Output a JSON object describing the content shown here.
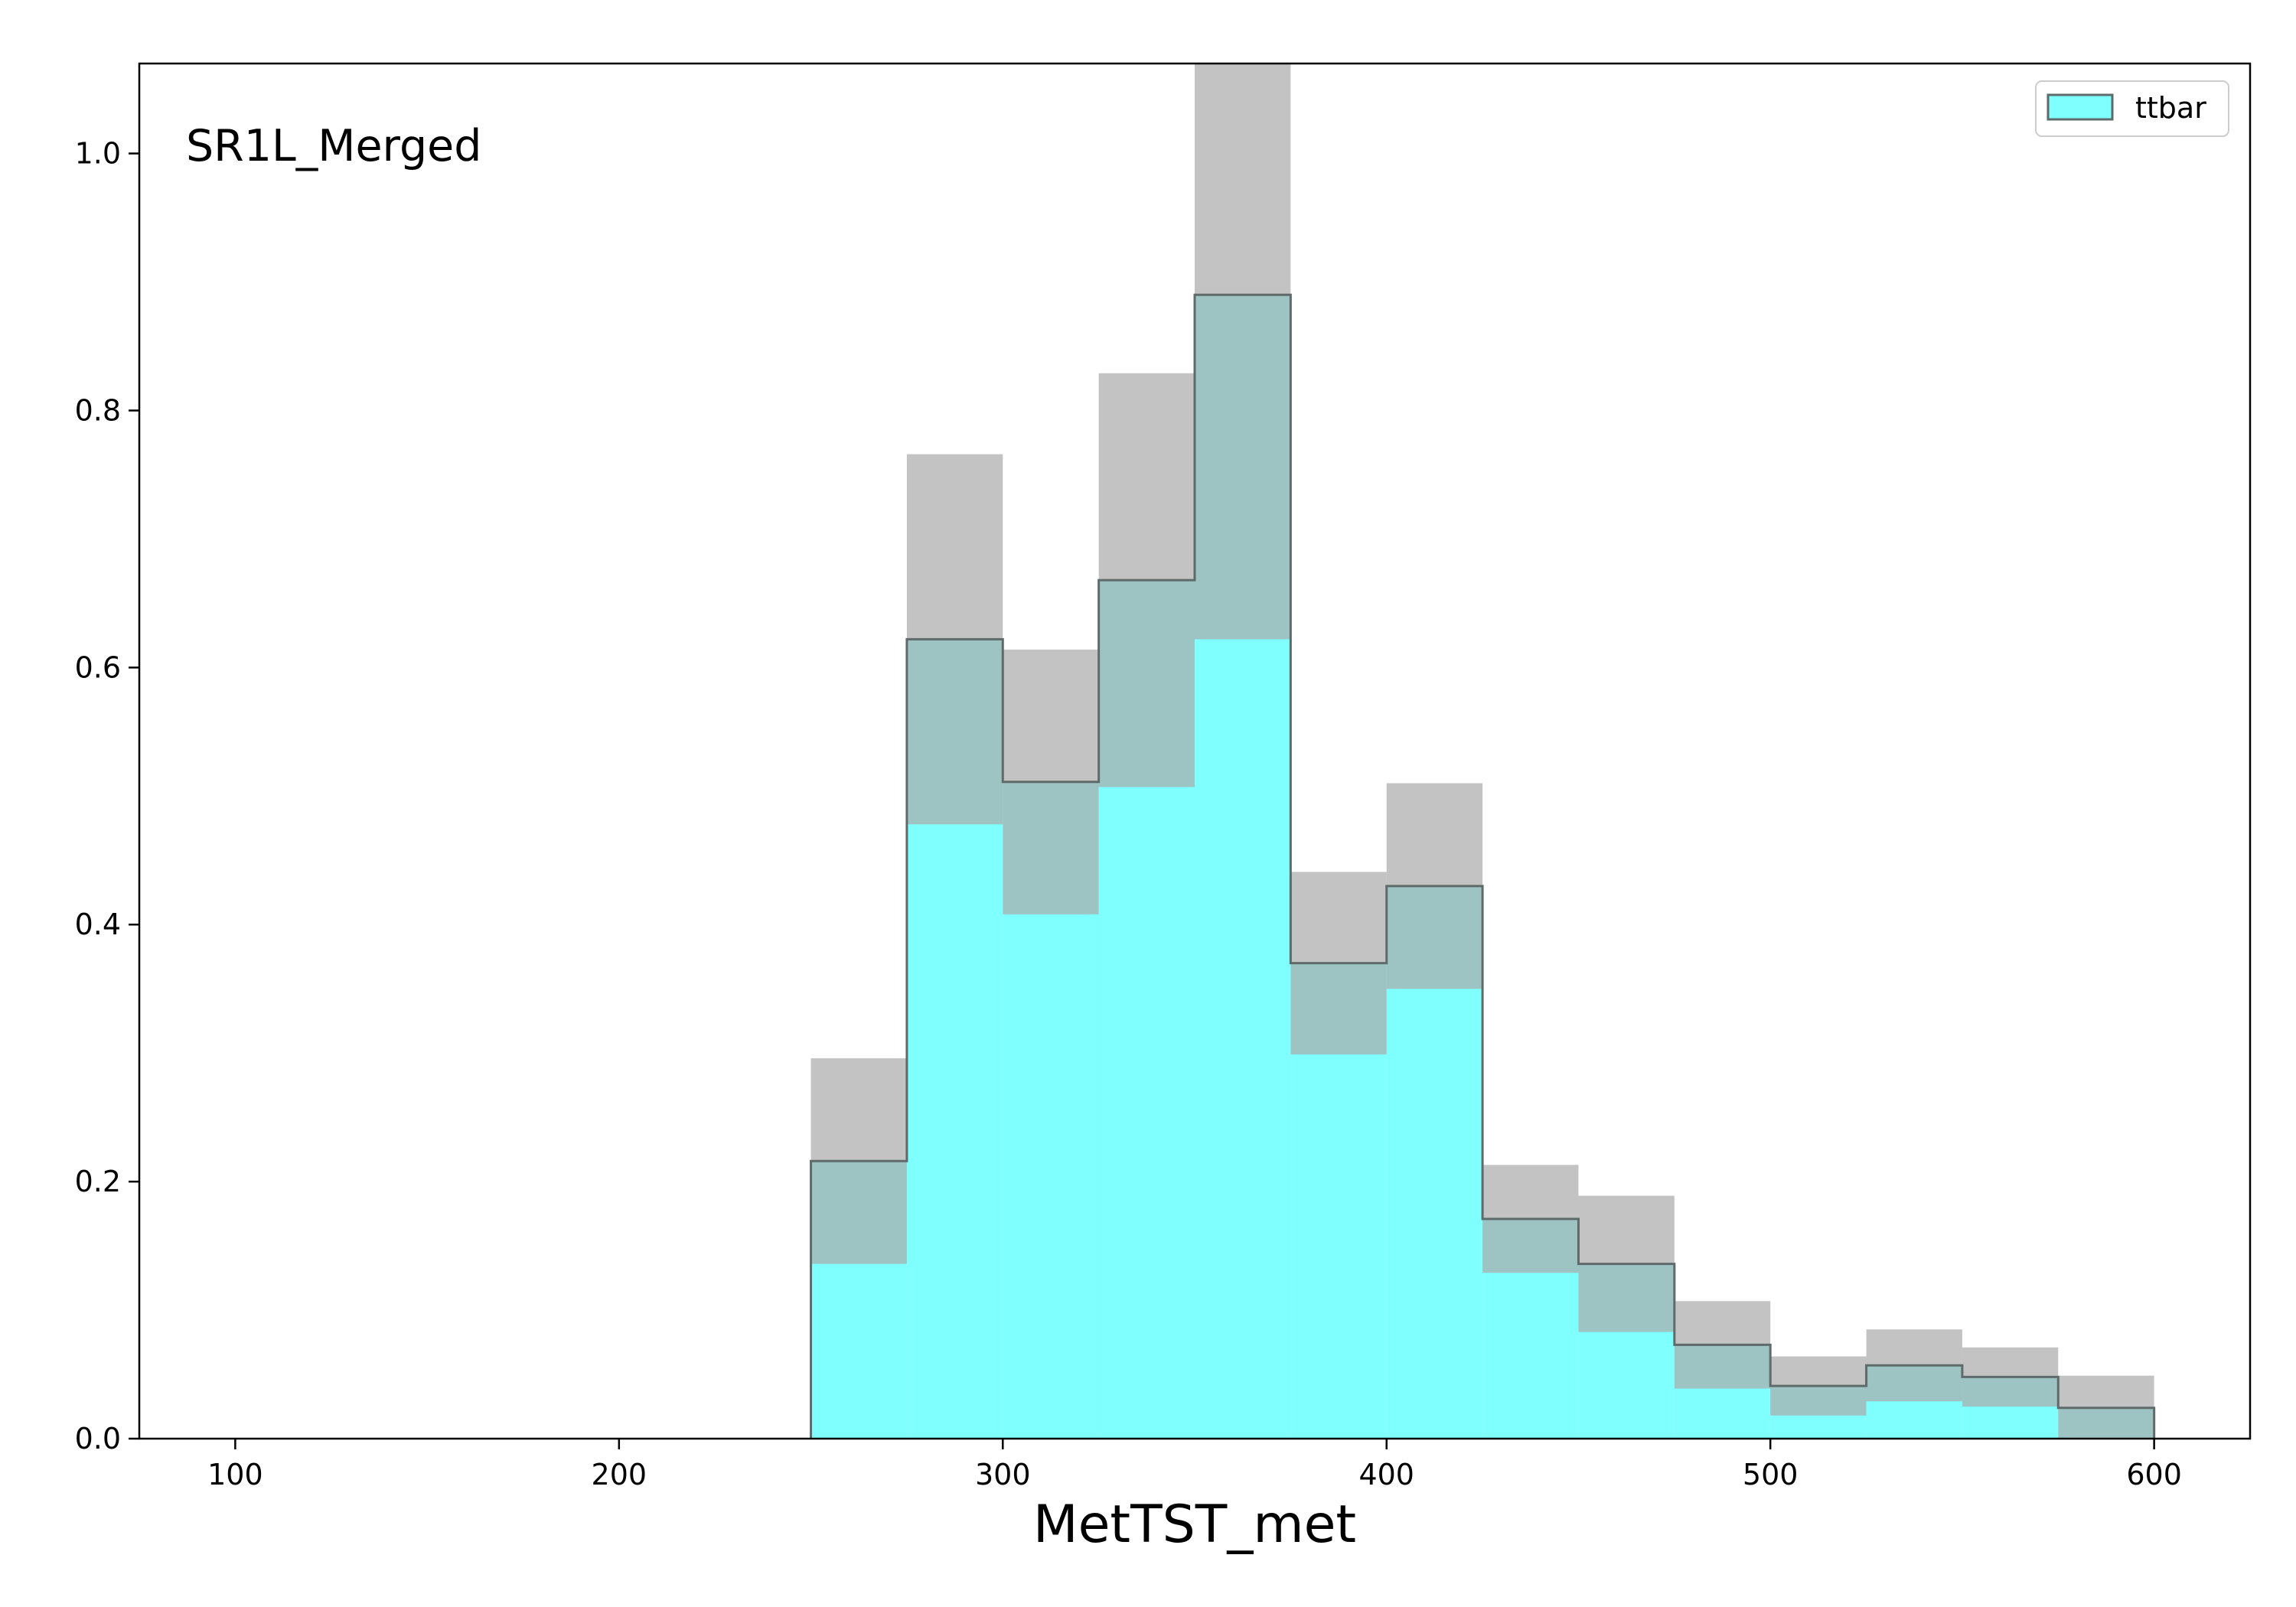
{
  "chart_data": {
    "type": "bar",
    "title": "",
    "annotation": "SR1L_Merged",
    "xlabel": "MetTST_met",
    "ylabel": "",
    "xlim": [
      75,
      625
    ],
    "ylim": [
      0,
      1.07
    ],
    "xticks": [
      100,
      200,
      300,
      400,
      500,
      600
    ],
    "yticks": [
      0.0,
      0.2,
      0.4,
      0.6,
      0.8,
      1.0
    ],
    "xtick_labels": [
      "100",
      "200",
      "300",
      "400",
      "500",
      "600"
    ],
    "ytick_labels": [
      "0.0",
      "0.2",
      "0.4",
      "0.6",
      "0.8",
      "1.0"
    ],
    "grid": false,
    "legend_position": "top-right",
    "bin_edges": [
      250,
      275,
      300,
      325,
      350,
      375,
      400,
      425,
      450,
      475,
      500,
      525,
      550,
      575,
      600
    ],
    "series": [
      {
        "name": "ttbar",
        "values": [
          0.216,
          0.622,
          0.511,
          0.668,
          0.89,
          0.37,
          0.43,
          0.171,
          0.136,
          0.073,
          0.041,
          0.057,
          0.048,
          0.024
        ],
        "uncertainty": [
          0.08,
          0.144,
          0.103,
          0.161,
          0.268,
          0.071,
          0.08,
          0.042,
          0.053,
          0.034,
          0.023,
          0.028,
          0.023,
          0.025
        ]
      }
    ],
    "colors": {
      "fill": "#80ffff",
      "edge": "#5f6b6b",
      "band": "#a9a9a9",
      "axes": "#000000"
    }
  }
}
